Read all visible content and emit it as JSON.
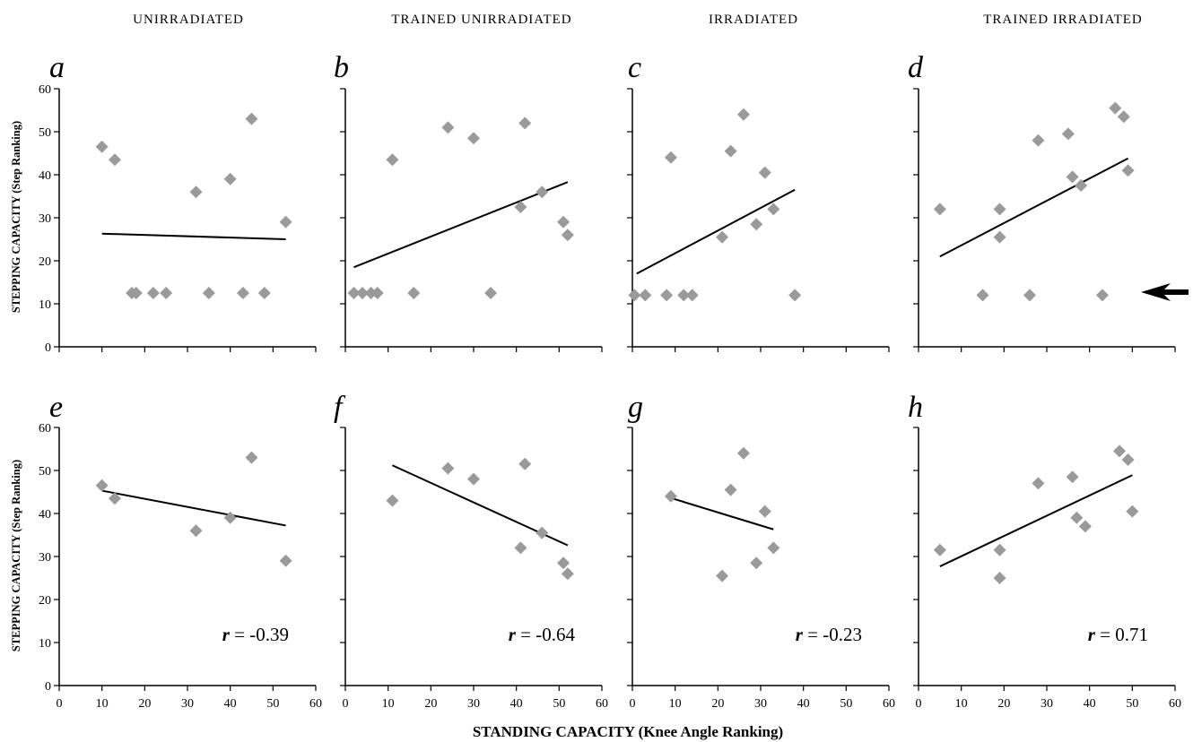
{
  "column_titles": [
    "UNIRRADIATED",
    "TRAINED UNIRRADIATED",
    "IRRADIATED",
    "TRAINED IRRADIATED"
  ],
  "x_axis_title": "STANDING CAPACITY (Knee Angle Ranking)",
  "y_axis_title": "STEPPING CAPACITY (Step Ranking)",
  "marker_color": "#9a9a9a",
  "arrow_icon": "left-arrow-icon",
  "chart_data": [
    {
      "type": "scatter",
      "panel": "a",
      "xlim": [
        0,
        60
      ],
      "ylim": [
        0,
        60
      ],
      "xticks": [],
      "yticks": [
        0,
        10,
        20,
        30,
        40,
        50,
        60
      ],
      "points": [
        [
          10,
          46.5
        ],
        [
          13,
          43.5
        ],
        [
          17,
          12.5
        ],
        [
          18,
          12.5
        ],
        [
          22,
          12.5
        ],
        [
          25,
          12.5
        ],
        [
          32,
          36
        ],
        [
          35,
          12.5
        ],
        [
          40,
          39
        ],
        [
          43,
          12.5
        ],
        [
          45,
          53
        ],
        [
          48,
          12.5
        ],
        [
          53,
          29
        ]
      ],
      "trendline": [
        [
          10,
          26.3
        ],
        [
          53,
          25
        ]
      ],
      "r_label": ""
    },
    {
      "type": "scatter",
      "panel": "b",
      "xlim": [
        0,
        60
      ],
      "ylim": [
        0,
        60
      ],
      "xticks": [],
      "yticks": [],
      "points": [
        [
          2,
          12.5
        ],
        [
          4,
          12.5
        ],
        [
          6,
          12.5
        ],
        [
          7.5,
          12.5
        ],
        [
          11,
          43.5
        ],
        [
          16,
          12.5
        ],
        [
          24,
          51
        ],
        [
          30,
          48.5
        ],
        [
          34,
          12.5
        ],
        [
          41,
          32.5
        ],
        [
          42,
          52
        ],
        [
          46,
          36
        ],
        [
          51,
          29
        ],
        [
          52,
          26
        ]
      ],
      "trendline": [
        [
          2,
          18.5
        ],
        [
          52,
          38.3
        ]
      ],
      "r_label": ""
    },
    {
      "type": "scatter",
      "panel": "c",
      "xlim": [
        0,
        60
      ],
      "ylim": [
        0,
        60
      ],
      "xticks": [],
      "yticks": [],
      "points": [
        [
          0.5,
          12
        ],
        [
          3,
          12
        ],
        [
          8,
          12
        ],
        [
          9,
          44
        ],
        [
          12,
          12
        ],
        [
          14,
          12
        ],
        [
          21,
          25.5
        ],
        [
          23,
          45.5
        ],
        [
          26,
          54
        ],
        [
          29,
          28.5
        ],
        [
          31,
          40.5
        ],
        [
          33,
          32
        ],
        [
          38,
          12
        ]
      ],
      "trendline": [
        [
          1,
          17
        ],
        [
          38,
          36.5
        ]
      ],
      "r_label": ""
    },
    {
      "type": "scatter",
      "panel": "d",
      "xlim": [
        0,
        60
      ],
      "ylim": [
        0,
        60
      ],
      "xticks": [],
      "yticks": [],
      "points": [
        [
          5,
          32
        ],
        [
          15,
          12
        ],
        [
          19,
          32
        ],
        [
          19,
          25.5
        ],
        [
          26,
          12
        ],
        [
          28,
          48
        ],
        [
          35,
          49.5
        ],
        [
          36,
          39.5
        ],
        [
          38,
          37.5
        ],
        [
          43,
          12
        ],
        [
          46,
          55.5
        ],
        [
          48,
          53.5
        ],
        [
          49,
          41
        ]
      ],
      "trendline": [
        [
          5,
          21
        ],
        [
          49,
          43.8
        ]
      ],
      "r_label": ""
    },
    {
      "type": "scatter",
      "panel": "e",
      "xlim": [
        0,
        60
      ],
      "ylim": [
        0,
        60
      ],
      "xticks": [
        0,
        10,
        20,
        30,
        40,
        50,
        60
      ],
      "yticks": [
        0,
        10,
        20,
        30,
        40,
        50,
        60
      ],
      "points": [
        [
          10,
          46.5
        ],
        [
          13,
          43.5
        ],
        [
          32,
          36
        ],
        [
          40,
          39
        ],
        [
          45,
          53
        ],
        [
          53,
          29
        ]
      ],
      "trendline": [
        [
          10,
          45.3
        ],
        [
          53,
          37.2
        ]
      ],
      "r_label": "-0.39"
    },
    {
      "type": "scatter",
      "panel": "f",
      "xlim": [
        0,
        60
      ],
      "ylim": [
        0,
        60
      ],
      "xticks": [
        0,
        10,
        20,
        30,
        40,
        50,
        60
      ],
      "yticks": [],
      "points": [
        [
          11,
          43
        ],
        [
          24,
          50.5
        ],
        [
          30,
          48
        ],
        [
          41,
          32
        ],
        [
          42,
          51.5
        ],
        [
          46,
          35.5
        ],
        [
          51,
          28.5
        ],
        [
          52,
          26
        ]
      ],
      "trendline": [
        [
          11,
          51.2
        ],
        [
          52,
          32.6
        ]
      ],
      "r_label": "-0.64"
    },
    {
      "type": "scatter",
      "panel": "g",
      "xlim": [
        0,
        60
      ],
      "ylim": [
        0,
        60
      ],
      "xticks": [
        0,
        10,
        20,
        30,
        40,
        50,
        60
      ],
      "yticks": [],
      "points": [
        [
          9,
          44
        ],
        [
          21,
          25.5
        ],
        [
          23,
          45.5
        ],
        [
          26,
          54
        ],
        [
          29,
          28.5
        ],
        [
          31,
          40.5
        ],
        [
          33,
          32
        ]
      ],
      "trendline": [
        [
          9,
          43.6
        ],
        [
          33,
          36.3
        ]
      ],
      "r_label": "-0.23"
    },
    {
      "type": "scatter",
      "panel": "h",
      "xlim": [
        0,
        60
      ],
      "ylim": [
        0,
        60
      ],
      "xticks": [
        0,
        10,
        20,
        30,
        40,
        50,
        60
      ],
      "yticks": [],
      "points": [
        [
          5,
          31.5
        ],
        [
          19,
          31.5
        ],
        [
          19,
          25
        ],
        [
          28,
          47
        ],
        [
          36,
          48.5
        ],
        [
          37,
          39
        ],
        [
          39,
          37
        ],
        [
          47,
          54.5
        ],
        [
          49,
          52.5
        ],
        [
          50,
          40.5
        ]
      ],
      "trendline": [
        [
          5,
          27.7
        ],
        [
          50,
          48.9
        ]
      ],
      "r_label": "0.71"
    }
  ]
}
